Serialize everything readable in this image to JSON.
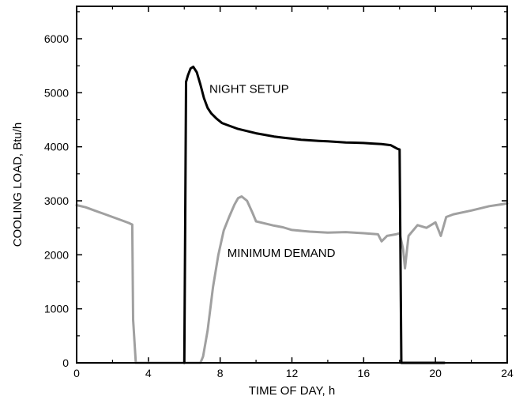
{
  "chart_data": {
    "type": "line",
    "xlabel": "TIME OF DAY, h",
    "ylabel": "COOLING LOAD, Btu/h",
    "xlim": [
      0,
      24
    ],
    "ylim": [
      0,
      6600
    ],
    "xticks": [
      0,
      4,
      8,
      12,
      16,
      20,
      24
    ],
    "yticks": [
      0,
      1000,
      2000,
      3000,
      4000,
      5000,
      6000
    ],
    "grid": false,
    "annotations": [
      {
        "text": "NIGHT SETUP",
        "x": 7.4,
        "y": 5000
      },
      {
        "text": "MINIMUM DEMAND",
        "x": 8.4,
        "y": 1960
      }
    ],
    "series": [
      {
        "name": "NIGHT SETUP",
        "color": "#000000",
        "points": [
          [
            6.0,
            0
          ],
          [
            6.05,
            2500
          ],
          [
            6.1,
            5200
          ],
          [
            6.2,
            5320
          ],
          [
            6.35,
            5450
          ],
          [
            6.5,
            5480
          ],
          [
            6.7,
            5380
          ],
          [
            6.9,
            5150
          ],
          [
            7.1,
            4900
          ],
          [
            7.3,
            4720
          ],
          [
            7.5,
            4620
          ],
          [
            7.8,
            4520
          ],
          [
            8.1,
            4440
          ],
          [
            8.5,
            4390
          ],
          [
            9.0,
            4330
          ],
          [
            9.5,
            4290
          ],
          [
            10.0,
            4250
          ],
          [
            10.5,
            4220
          ],
          [
            11.0,
            4190
          ],
          [
            11.5,
            4170
          ],
          [
            12.0,
            4150
          ],
          [
            12.5,
            4130
          ],
          [
            13.0,
            4120
          ],
          [
            13.5,
            4110
          ],
          [
            14.0,
            4100
          ],
          [
            14.5,
            4090
          ],
          [
            15.0,
            4080
          ],
          [
            15.5,
            4075
          ],
          [
            16.0,
            4070
          ],
          [
            16.5,
            4060
          ],
          [
            17.0,
            4050
          ],
          [
            17.5,
            4030
          ],
          [
            17.9,
            3960
          ],
          [
            18.0,
            3950
          ],
          [
            18.05,
            2000
          ],
          [
            18.1,
            0
          ],
          [
            18.5,
            0
          ],
          [
            19.0,
            0
          ],
          [
            20.0,
            0
          ],
          [
            20.5,
            0
          ]
        ]
      },
      {
        "name": "MINIMUM DEMAND",
        "color": "#a0a0a0",
        "points": [
          [
            0.0,
            2920
          ],
          [
            0.5,
            2880
          ],
          [
            1.0,
            2820
          ],
          [
            1.5,
            2760
          ],
          [
            2.0,
            2700
          ],
          [
            2.5,
            2640
          ],
          [
            2.9,
            2590
          ],
          [
            3.1,
            2560
          ],
          [
            3.15,
            800
          ],
          [
            3.3,
            0
          ],
          [
            4.0,
            0
          ],
          [
            5.0,
            0
          ],
          [
            6.0,
            0
          ],
          [
            6.5,
            0
          ],
          [
            6.9,
            0
          ],
          [
            7.05,
            120
          ],
          [
            7.3,
            600
          ],
          [
            7.6,
            1400
          ],
          [
            7.9,
            2000
          ],
          [
            8.2,
            2450
          ],
          [
            8.5,
            2700
          ],
          [
            8.8,
            2930
          ],
          [
            9.0,
            3050
          ],
          [
            9.2,
            3080
          ],
          [
            9.5,
            3000
          ],
          [
            9.8,
            2780
          ],
          [
            10.0,
            2620
          ],
          [
            10.5,
            2580
          ],
          [
            11.0,
            2540
          ],
          [
            11.5,
            2510
          ],
          [
            12.0,
            2460
          ],
          [
            13.0,
            2430
          ],
          [
            14.0,
            2410
          ],
          [
            15.0,
            2420
          ],
          [
            16.0,
            2400
          ],
          [
            16.8,
            2380
          ],
          [
            17.0,
            2250
          ],
          [
            17.3,
            2350
          ],
          [
            17.8,
            2380
          ],
          [
            18.0,
            2400
          ],
          [
            18.2,
            2100
          ],
          [
            18.3,
            1750
          ],
          [
            18.5,
            2350
          ],
          [
            19.0,
            2550
          ],
          [
            19.5,
            2500
          ],
          [
            20.0,
            2600
          ],
          [
            20.3,
            2350
          ],
          [
            20.6,
            2700
          ],
          [
            21.0,
            2750
          ],
          [
            22.0,
            2820
          ],
          [
            23.0,
            2900
          ],
          [
            24.0,
            2950
          ]
        ]
      }
    ]
  }
}
